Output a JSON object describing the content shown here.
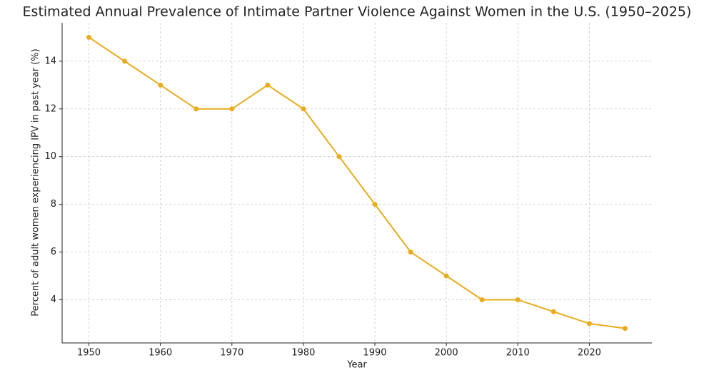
{
  "chart_data": {
    "type": "line",
    "title": "Estimated Annual Prevalence of Intimate Partner Violence Against Women in the U.S. (1950–2025)",
    "x_label": "Year",
    "y_label": "Percent of adult women experiencing IPV in past year (%)",
    "x": [
      1950,
      1955,
      1960,
      1965,
      1970,
      1975,
      1980,
      1985,
      1990,
      1995,
      2000,
      2005,
      2010,
      2015,
      2020,
      2025
    ],
    "series": [
      {
        "color": "#e8ac1c",
        "values": [
          15,
          14,
          13,
          12,
          12,
          13,
          12,
          10,
          8,
          6,
          5,
          4,
          4,
          3.5,
          3,
          2.8
        ]
      }
    ],
    "xlim": [
      1946.25,
      2028.75
    ],
    "ylim": [
      2.19,
      15.61
    ],
    "xticks": [
      1950,
      1960,
      1970,
      1980,
      1990,
      2000,
      2010,
      2020
    ],
    "yticks": [
      4,
      6,
      8,
      10,
      12,
      14
    ],
    "grid": true
  }
}
